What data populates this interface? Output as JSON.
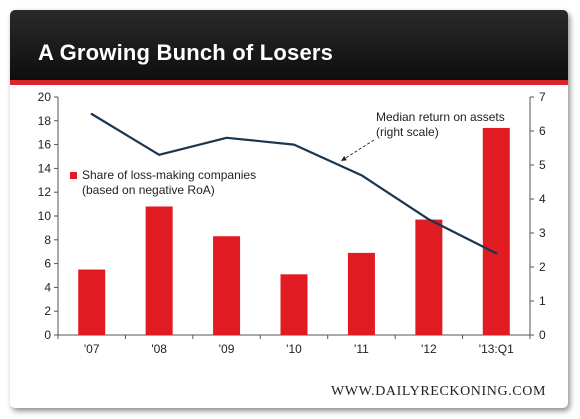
{
  "header": {
    "title": "A Growing Bunch of Losers"
  },
  "watermark": "WWW.DAILYRECKONING.COM",
  "colors": {
    "bar": "#e11b22",
    "line": "#1a3550",
    "header_bg": "#111111",
    "accent": "#d9262c"
  },
  "chart_data": {
    "type": "bar",
    "title": "A Growing Bunch of Losers",
    "categories": [
      "'07",
      "'08",
      "'09",
      "'10",
      "'11",
      "'12",
      "'13:Q1"
    ],
    "series": [
      {
        "name": "Share of loss-making companies (based on negative RoA)",
        "type": "bar",
        "axis": "left",
        "values": [
          5.5,
          10.8,
          8.3,
          5.1,
          6.9,
          9.7,
          17.4
        ]
      },
      {
        "name": "Median return on assets (right scale)",
        "type": "line",
        "axis": "right",
        "values": [
          6.5,
          5.3,
          5.8,
          5.6,
          4.7,
          3.4,
          2.4
        ]
      }
    ],
    "y_left": {
      "min": 0,
      "max": 20,
      "ticks": [
        0,
        2,
        4,
        6,
        8,
        10,
        12,
        14,
        16,
        18,
        20
      ]
    },
    "y_right": {
      "min": 0,
      "max": 7,
      "ticks": [
        0,
        1,
        2,
        3,
        4,
        5,
        6,
        7
      ]
    },
    "legend": {
      "bar_label_line1": "Share of loss-making companies",
      "bar_label_line2": "(based on negative RoA)"
    },
    "annotation": {
      "line1": "Median return on assets",
      "line2": "(right scale)"
    },
    "grid": false
  }
}
